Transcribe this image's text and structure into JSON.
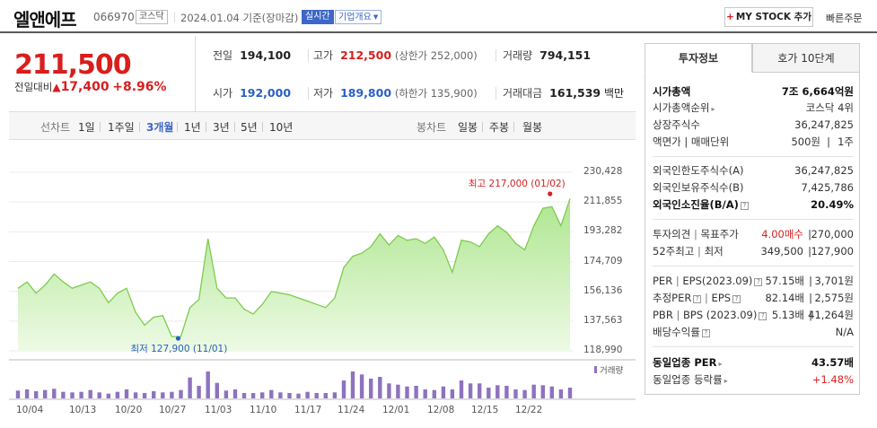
{
  "header": {
    "company": "엘앤에프",
    "code": "066970",
    "market": "코스닥",
    "date": "2024.01.04  기준(장마감)",
    "realtime": "실시간",
    "company_info": "기업개요",
    "mystock": "MY STOCK 추가",
    "quick_order": "빠른주문"
  },
  "price": {
    "current": "211,500",
    "change_label": "전일대비",
    "change": "17,400",
    "change_pct": "+8.96%"
  },
  "stats": {
    "prev_label": "전일",
    "prev": "194,100",
    "high_label": "고가",
    "high": "212,500",
    "upper_limit": "(상한가 252,000)",
    "volume_label": "거래량",
    "volume": "794,151",
    "open_label": "시가",
    "open": "192,000",
    "low_label": "저가",
    "low": "189,800",
    "lower_limit": "(하한가 135,900)",
    "amount_label": "거래대금",
    "amount": "161,539",
    "amount_unit": "백만"
  },
  "period_tabs": {
    "line_title": "선차트",
    "line": [
      "1일",
      "1주일",
      "3개월",
      "1년",
      "3년",
      "5년",
      "10년"
    ],
    "candle_title": "봉차트",
    "candle": [
      "일봉",
      "주봉",
      "월봉"
    ]
  },
  "chart_data": {
    "type": "area",
    "y_ticks": [
      "230,428",
      "211,855",
      "193,282",
      "174,709",
      "156,136",
      "137,563",
      "118,990"
    ],
    "ylim": [
      118990,
      230428
    ],
    "x_ticks": [
      "10/04",
      "10/13",
      "10/20",
      "10/27",
      "11/03",
      "11/10",
      "11/17",
      "11/24",
      "12/01",
      "12/08",
      "12/15",
      "12/22"
    ],
    "series": [
      {
        "values": [
          158000,
          162000,
          155000,
          160000,
          167000,
          162000,
          158000,
          160000,
          162000,
          158000,
          149000,
          155000,
          158000,
          143000,
          135000,
          140000,
          141000,
          127900,
          127900,
          146000,
          151000,
          189000,
          158000,
          152000,
          152000,
          145000,
          142000,
          148000,
          156000,
          155000,
          154000,
          152000,
          150000,
          148000,
          146000,
          152000,
          171000,
          178000,
          180000,
          184000,
          192000,
          185000,
          191000,
          188000,
          189000,
          186000,
          190000,
          182000,
          168000,
          188000,
          187000,
          184000,
          192000,
          197000,
          193000,
          186000,
          182000,
          197000,
          208000,
          209000,
          197000,
          214000
        ]
      }
    ],
    "high_label": "최고 217,000 (01/02)",
    "low_label": "최저 127,900 (11/01)",
    "volume_label": "거래량",
    "volume": [
      26,
      30,
      24,
      28,
      32,
      22,
      20,
      22,
      28,
      20,
      16,
      22,
      30,
      20,
      18,
      24,
      20,
      22,
      28,
      70,
      42,
      90,
      52,
      26,
      30,
      18,
      18,
      20,
      28,
      20,
      18,
      16,
      22,
      18,
      18,
      20,
      60,
      90,
      80,
      66,
      72,
      50,
      46,
      40,
      42,
      30,
      28,
      40,
      30,
      60,
      50,
      50,
      36,
      44,
      42,
      30,
      28,
      46,
      44,
      40,
      30,
      36
    ]
  },
  "info": {
    "tab_invest": "투자정보",
    "tab_hoga": "호가 10단계",
    "market_cap_label": "시가총액",
    "market_cap": "7조 6,664억원",
    "cap_rank_label": "시가총액순위",
    "cap_rank": "코스닥 4위",
    "shares_label": "상장주식수",
    "shares": "36,247,825",
    "par_label": "액면가 | 매매단위",
    "par": "500원",
    "unit": "1주",
    "foreign_limit_label": "외국인한도주식수(A)",
    "foreign_limit": "36,247,825",
    "foreign_hold_label": "외국인보유주식수(B)",
    "foreign_hold": "7,425,786",
    "foreign_ratio_label": "외국인소진율(B/A)",
    "foreign_ratio": "20.49%",
    "opinion_label": "투자의견",
    "target_label": "목표주가",
    "opinion": "4.00매수",
    "target": "270,000",
    "w52_label": "52주최고",
    "w52_low_label": "최저",
    "w52_high": "349,500",
    "w52_low": "127,900",
    "per_label": "PER",
    "eps_label": "EPS(2023.09)",
    "per": "57.15배",
    "eps": "3,701원",
    "est_per_label": "추정PER",
    "est_eps_label": "EPS",
    "est_per": "82.14배",
    "est_eps": "2,575원",
    "pbr_label": "PBR",
    "bps_label": "BPS (2023.09)",
    "pbr": "5.13배",
    "bps": "41,264원",
    "div_label": "배당수익률",
    "div": "N/A",
    "ind_per_label": "동일업종 PER",
    "ind_per": "43.57배",
    "ind_chg_label": "동일업종 등락률",
    "ind_chg": "+1.48%"
  }
}
